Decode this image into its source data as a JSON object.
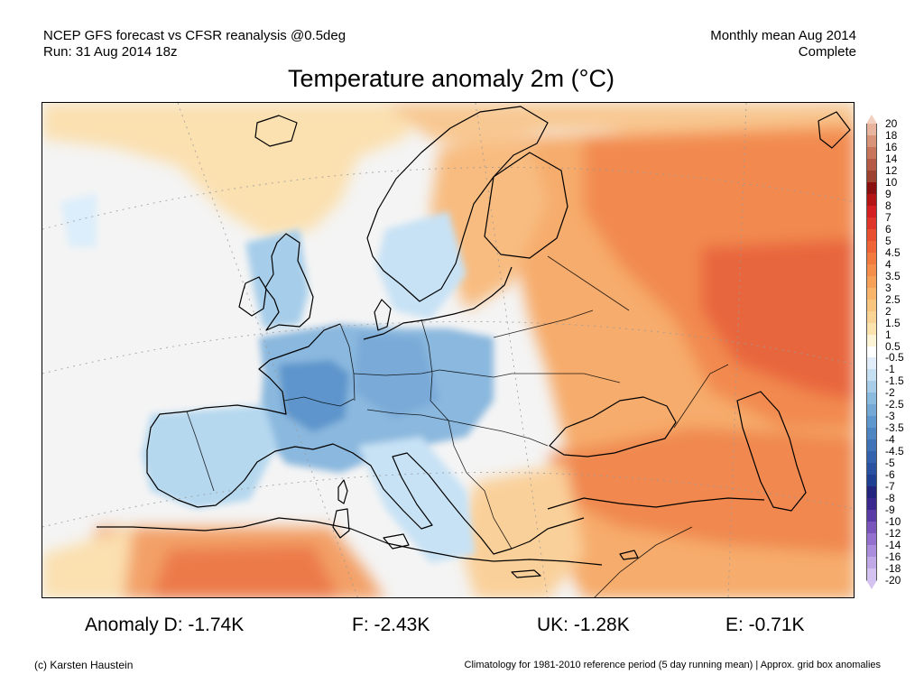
{
  "header": {
    "left_line1": "NCEP GFS forecast vs CFSR reanalysis @0.5deg",
    "left_line2": "Run: 31 Aug 2014 18z",
    "right_line1": "Monthly mean Aug 2014",
    "right_line2": "Complete"
  },
  "title": "Temperature anomaly 2m (°C)",
  "colorbar": {
    "labels": [
      "20",
      "18",
      "16",
      "14",
      "12",
      "10",
      "9",
      "8",
      "7",
      "6",
      "5",
      "4.5",
      "4",
      "3.5",
      "3",
      "2.5",
      "2",
      "1.5",
      "1",
      "0.5",
      "-0.5",
      "-1",
      "-1.5",
      "-2",
      "-2.5",
      "-3",
      "-3.5",
      "-4",
      "-4.5",
      "-5",
      "-6",
      "-7",
      "-8",
      "-9",
      "-10",
      "-12",
      "-14",
      "-16",
      "-18",
      "-20"
    ],
    "colors": [
      "#f2cfc0",
      "#e8b49e",
      "#d99379",
      "#c9755c",
      "#b55a45",
      "#9e4230",
      "#8a0f0f",
      "#b51414",
      "#d42020",
      "#e0362a",
      "#e84e30",
      "#ee6436",
      "#f27a3e",
      "#f58e4a",
      "#f7a058",
      "#f8b46a",
      "#f9c47e",
      "#fad494",
      "#fbe3ae",
      "#fdf4d6",
      "#ffffff",
      "#e1eefa",
      "#c6e0f3",
      "#a8cde9",
      "#8bbadf",
      "#74a9d6",
      "#5e97cd",
      "#4d85c3",
      "#3f73b8",
      "#3262ad",
      "#2852a1",
      "#1f3f92",
      "#22247e",
      "#3a2890",
      "#5a3aa6",
      "#7a55bc",
      "#9470cf",
      "#ab8ddd",
      "#c1a9e8",
      "#d4c2f0"
    ]
  },
  "map": {
    "background_color": "#f4f4f4"
  },
  "anomalies": [
    {
      "id": "d",
      "text": "Anomaly D: -1.74K"
    },
    {
      "id": "f",
      "text": "F: -2.43K"
    },
    {
      "id": "uk",
      "text": "UK: -1.28K"
    },
    {
      "id": "e",
      "text": "E: -0.71K"
    }
  ],
  "footer": {
    "left": "(c) Karsten Haustein",
    "right": "Climatology for 1981-2010 reference period (5 day running mean) | Approx. grid box anomalies"
  }
}
